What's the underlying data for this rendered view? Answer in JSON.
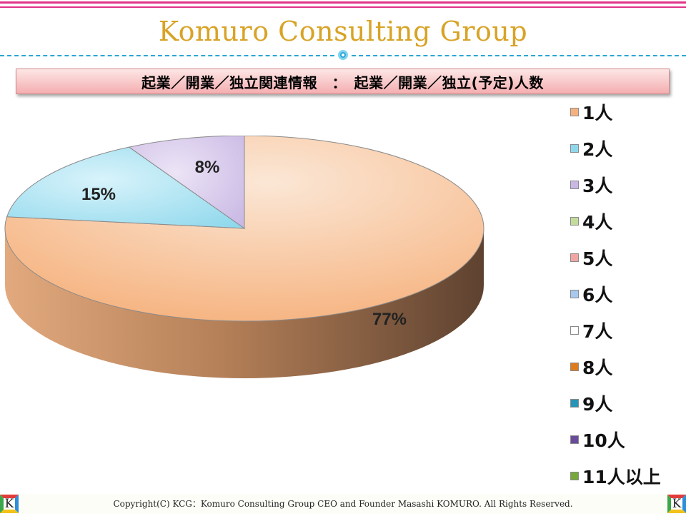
{
  "header": {
    "brand": "Komuro Consulting Group",
    "banner_title": "起業／開業／独立関連情報　：　起業／開業／独立(予定)人数"
  },
  "chart_data": {
    "type": "pie",
    "style": "3d",
    "slices": [
      {
        "label": "1人",
        "value": 77,
        "data_label": "77%",
        "color": "#f6b27e"
      },
      {
        "label": "2人",
        "value": 15,
        "data_label": "15%",
        "color": "#8fd8ec"
      },
      {
        "label": "3人",
        "value": 8,
        "data_label": "8%",
        "color": "#c9b8e4"
      }
    ],
    "legend": {
      "placement": "right",
      "items": [
        {
          "label": "1人",
          "color": "#f6b27e"
        },
        {
          "label": "2人",
          "color": "#8fd8ec"
        },
        {
          "label": "3人",
          "color": "#c9b8e4"
        },
        {
          "label": "4人",
          "color": "#c3dc9c"
        },
        {
          "label": "5人",
          "color": "#f1a6a3"
        },
        {
          "label": "6人",
          "color": "#a8c8ee"
        },
        {
          "label": "7人",
          "color": "#ffffff"
        },
        {
          "label": "8人",
          "color": "#e07b1c"
        },
        {
          "label": "9人",
          "color": "#2594b6"
        },
        {
          "label": "10人",
          "color": "#6a4b9a"
        },
        {
          "label": "11人以上",
          "color": "#77a83a"
        }
      ]
    }
  },
  "footer": {
    "copyright": "Copyright(C)  KCG：Komuro Consulting Group CEO and Founder Masashi KOMURO. All Rights Reserved.",
    "logo_letter": "K"
  }
}
